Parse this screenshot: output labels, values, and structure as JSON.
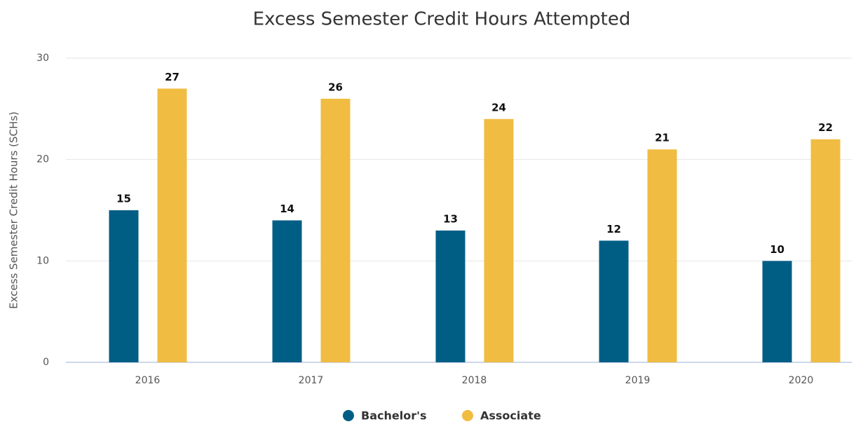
{
  "chart_data": {
    "type": "bar",
    "title": "Excess Semester Credit Hours Attempted",
    "y_label": "Excess Semester Credit Hours (SCHs)",
    "categories": [
      "2016",
      "2017",
      "2018",
      "2019",
      "2020"
    ],
    "series": [
      {
        "name": "Bachelor's",
        "color": "#005e85",
        "values": [
          15,
          14,
          13,
          12,
          10
        ]
      },
      {
        "name": "Associate",
        "color": "#f0bc42",
        "values": [
          27,
          26,
          24,
          21,
          22
        ]
      }
    ],
    "ylim": [
      0,
      30
    ],
    "yticks": [
      0,
      10,
      20,
      30
    ],
    "grid": true,
    "legend": "bottom"
  }
}
